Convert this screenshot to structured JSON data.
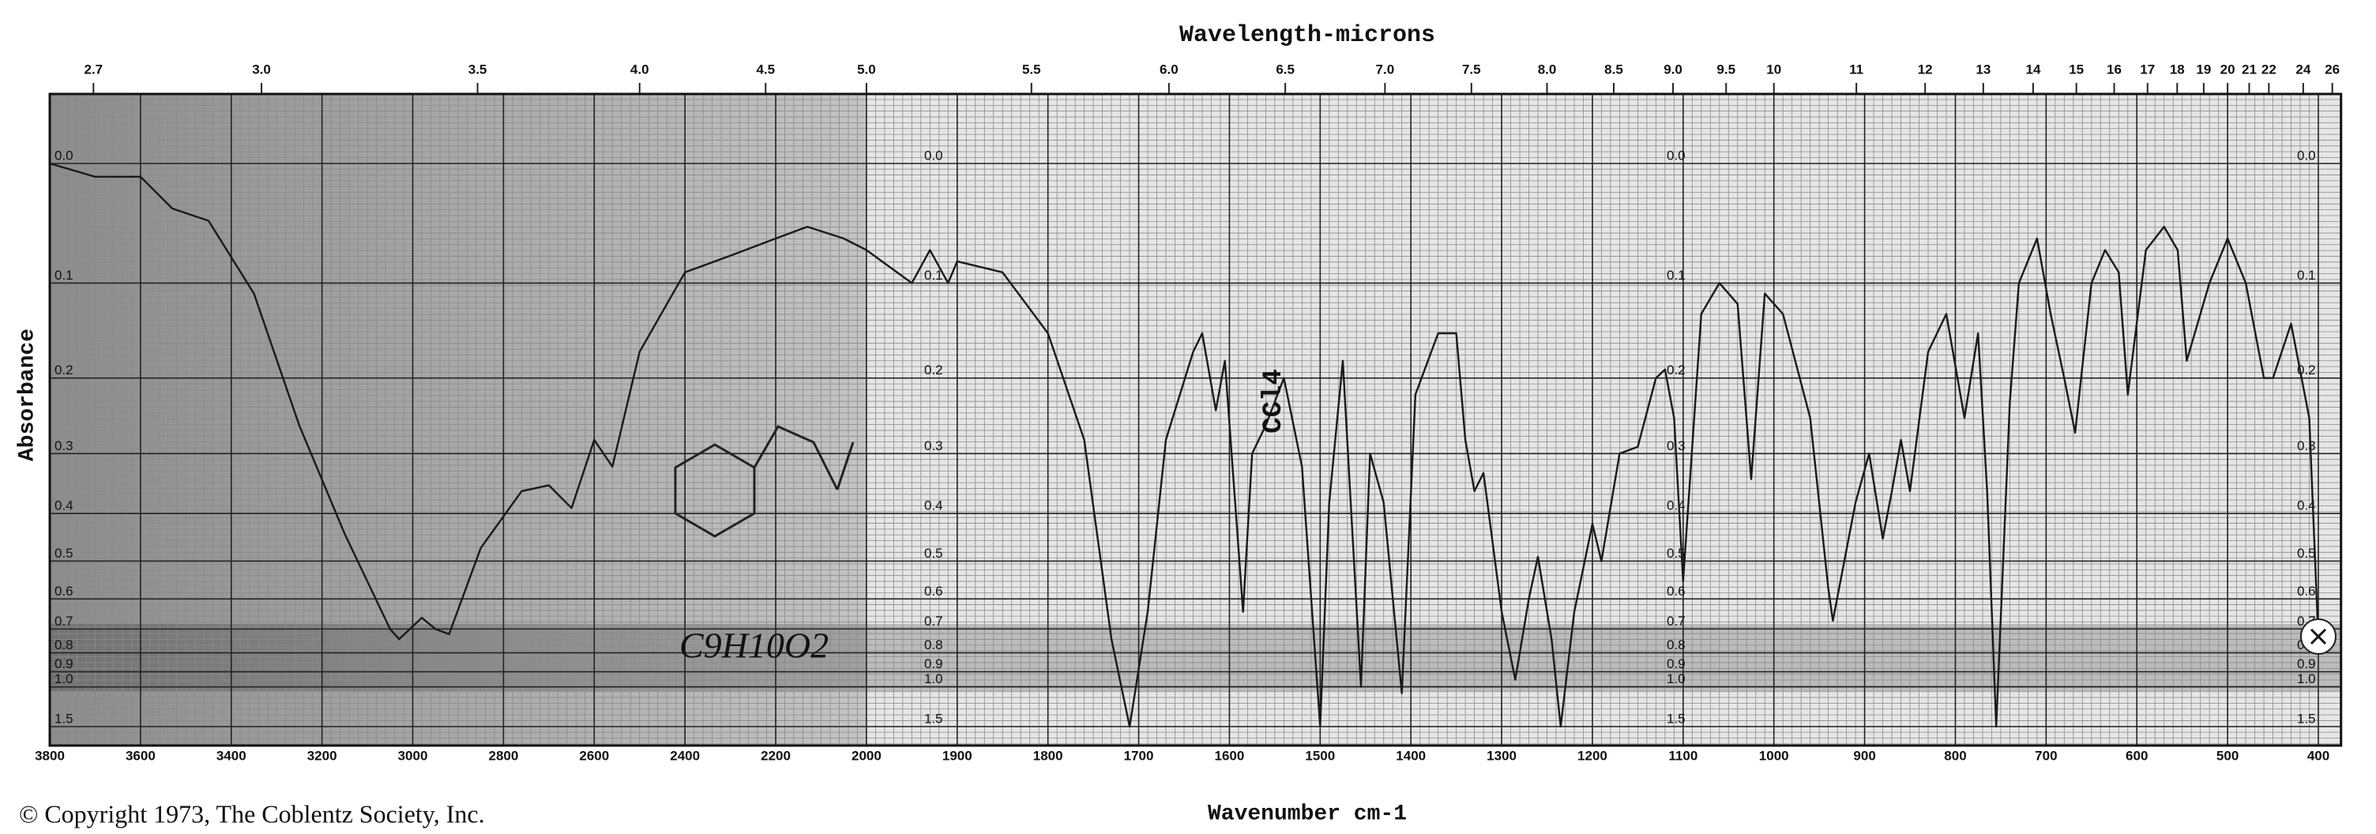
{
  "chart_data": {
    "type": "line",
    "title": "Wavelength-microns",
    "x_label": "Wavenumber cm-1",
    "y_label": "Absorbance",
    "footer": "© Copyright 1973, The Coblentz Society, Inc.",
    "annotations": [
      "CCl4",
      "C9H10O2"
    ],
    "xscale": "piecewise",
    "yscale": "absorbance",
    "color": "#1a1a1a",
    "grid": true,
    "xlim": [
      3800,
      375
    ],
    "xticks": [
      3800,
      3600,
      3400,
      3200,
      3000,
      2800,
      2600,
      2400,
      2200,
      2000,
      1900,
      1800,
      1700,
      1600,
      1500,
      1400,
      1300,
      1200,
      1100,
      1000,
      900,
      800,
      700,
      600,
      500,
      400
    ],
    "x2ticks": [
      2.7,
      {
        "value": 3,
        "label": "3.0"
      },
      3.5,
      {
        "value": 4,
        "label": "4.0"
      },
      4.5,
      {
        "value": 5,
        "label": "5.0"
      },
      5.5,
      {
        "value": 6,
        "label": "6.0"
      },
      6.5,
      {
        "value": 7,
        "label": "7.0"
      },
      7.5,
      {
        "value": 8,
        "label": "8.0"
      },
      8.5,
      {
        "value": 9,
        "label": "9.0"
      },
      9.5,
      10,
      11,
      12,
      13,
      14,
      15,
      16,
      17,
      18,
      19,
      20,
      21,
      22,
      24,
      26
    ],
    "ylim": [
      0,
      1.5
    ],
    "yticks": [
      {
        "value": 0,
        "label": "0.0"
      },
      0.1,
      0.2,
      0.3,
      0.4,
      0.5,
      0.6,
      0.7,
      0.8,
      0.9,
      {
        "value": 1,
        "label": "1.0"
      },
      1.5
    ],
    "x": [
      3800,
      3700,
      3600,
      3530,
      3450,
      3350,
      3250,
      3150,
      3050,
      3030,
      2980,
      2950,
      2920,
      2850,
      2760,
      2700,
      2650,
      2600,
      2560,
      2500,
      2400,
      2300,
      2200,
      2130,
      2050,
      2000,
      1950,
      1930,
      1910,
      1900,
      1850,
      1800,
      1760,
      1730,
      1710,
      1690,
      1670,
      1640,
      1630,
      1615,
      1605,
      1585,
      1575,
      1560,
      1540,
      1520,
      1500,
      1490,
      1475,
      1455,
      1445,
      1430,
      1410,
      1395,
      1370,
      1350,
      1340,
      1330,
      1320,
      1300,
      1285,
      1270,
      1260,
      1245,
      1235,
      1220,
      1200,
      1190,
      1170,
      1150,
      1130,
      1120,
      1110,
      1100,
      1080,
      1060,
      1040,
      1025,
      1010,
      990,
      960,
      940,
      935,
      910,
      895,
      880,
      870,
      860,
      850,
      830,
      810,
      790,
      775,
      765,
      755,
      740,
      730,
      710,
      695,
      680,
      668,
      650,
      635,
      620,
      610,
      590,
      570,
      555,
      545,
      520,
      500,
      480,
      460,
      450,
      430,
      410,
      400
    ],
    "values": [
      0,
      0.01,
      0.01,
      0.035,
      0.045,
      0.11,
      0.26,
      0.44,
      0.7,
      0.74,
      0.66,
      0.7,
      0.72,
      0.47,
      0.36,
      0.35,
      0.39,
      0.28,
      0.32,
      0.17,
      0.09,
      0.075,
      0.06,
      0.05,
      0.06,
      0.07,
      0.1,
      0.07,
      0.1,
      0.08,
      0.09,
      0.15,
      0.28,
      0.74,
      1.5,
      0.64,
      0.28,
      0.17,
      0.15,
      0.24,
      0.18,
      0.64,
      0.3,
      0.26,
      0.2,
      0.32,
      1.5,
      0.38,
      0.18,
      1.0,
      0.3,
      0.38,
      1.05,
      0.22,
      0.15,
      0.15,
      0.28,
      0.36,
      0.33,
      0.64,
      0.95,
      0.6,
      0.49,
      0.74,
      1.5,
      0.64,
      0.42,
      0.5,
      0.3,
      0.29,
      0.2,
      0.19,
      0.25,
      0.55,
      0.13,
      0.1,
      0.12,
      0.34,
      0.11,
      0.13,
      0.25,
      0.57,
      0.67,
      0.38,
      0.3,
      0.45,
      0.36,
      0.28,
      0.36,
      0.17,
      0.13,
      0.25,
      0.15,
      0.36,
      1.5,
      0.23,
      0.1,
      0.06,
      0.13,
      0.2,
      0.27,
      0.1,
      0.07,
      0.09,
      0.22,
      0.07,
      0.05,
      0.07,
      0.18,
      0.1,
      0.06,
      0.1,
      0.2,
      0.2,
      0.14,
      0.25,
      0.74
    ]
  }
}
